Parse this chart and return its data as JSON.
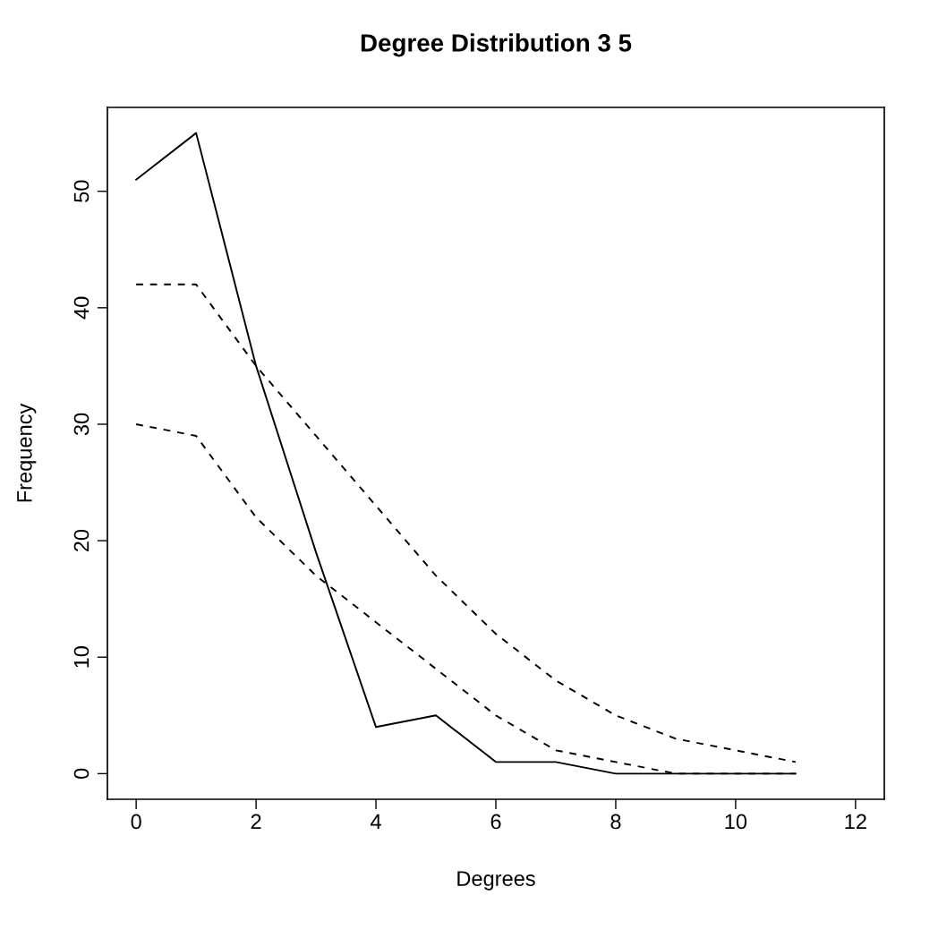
{
  "chart_data": {
    "type": "line",
    "title": "Degree Distribution 3 5",
    "xlabel": "Degrees",
    "ylabel": "Frequency",
    "x": [
      0,
      1,
      2,
      3,
      4,
      5,
      6,
      7,
      8,
      9,
      10,
      11
    ],
    "series": [
      {
        "color": "#000000",
        "line_style": "solid",
        "values": [
          51,
          55,
          35,
          19,
          4,
          5,
          1,
          1,
          0,
          0,
          0,
          0
        ]
      },
      {
        "color": "#000000",
        "line_style": "dashed",
        "values": [
          42,
          42,
          35,
          29,
          23,
          17,
          12,
          8,
          5,
          3,
          2,
          1
        ]
      },
      {
        "color": "#000000",
        "line_style": "dashed",
        "values": [
          30,
          29,
          22,
          17,
          13,
          9,
          5,
          2,
          1,
          0,
          0,
          0
        ]
      }
    ],
    "xlim": [
      -0.48,
      12.48
    ],
    "ylim": [
      -2.2,
      57.2
    ],
    "xticks": [
      0,
      2,
      4,
      6,
      8,
      10,
      12
    ],
    "yticks": [
      0,
      10,
      20,
      30,
      40,
      50
    ],
    "grid": false,
    "legend": false,
    "marker": "none"
  }
}
